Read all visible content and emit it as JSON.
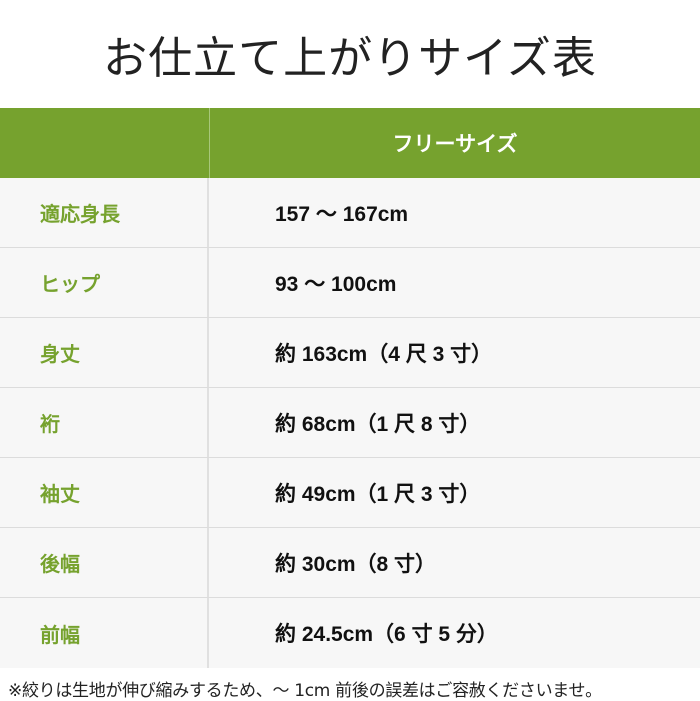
{
  "title": "お仕立て上がりサイズ表",
  "table": {
    "header": "フリーサイズ",
    "rows": [
      {
        "label": "適応身長",
        "value": "157 ～ 167cm"
      },
      {
        "label": "ヒップ",
        "value": "93 ～ 100cm"
      },
      {
        "label": "身丈",
        "value": "約 163cm（4 尺 3 寸）"
      },
      {
        "label": "裄",
        "value": "約 68cm（1 尺 8 寸）"
      },
      {
        "label": "袖丈",
        "value": "約 49cm（1 尺 3 寸）"
      },
      {
        "label": "後幅",
        "value": "約 30cm（8 寸）"
      },
      {
        "label": "前幅",
        "value": "約 24.5cm（6 寸 5 分）"
      }
    ]
  },
  "note": "※絞りは生地が伸び縮みするため、～ 1cm 前後の誤差はご容赦くださいませ。",
  "colors": {
    "accent": "#76a22e",
    "row_bg": "#f7f7f7"
  }
}
